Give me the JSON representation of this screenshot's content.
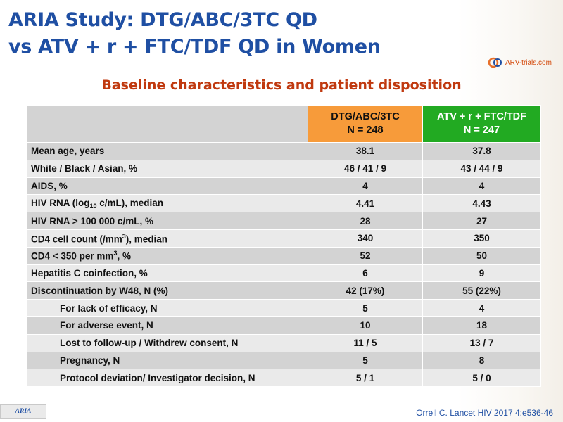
{
  "header": {
    "title_line1": "ARIA Study: DTG/ABC/3TC QD",
    "title_line2": "vs ATV + r + FTC/TDF QD in Women",
    "subtitle": "Baseline characteristics and patient disposition"
  },
  "logo": {
    "text": "ARV-trials.com"
  },
  "table": {
    "groups": [
      {
        "name": "DTG/ABC/3TC",
        "n": "N = 248",
        "color": "#f79b3a"
      },
      {
        "name": "ATV + r + FTC/TDF",
        "n": "N = 247",
        "color": "#22aa22"
      }
    ],
    "rows": [
      {
        "label": "Mean age, years",
        "v1": "38.1",
        "v2": "37.8"
      },
      {
        "label": "White / Black / Asian, %",
        "v1": "46 / 41 / 9",
        "v2": "43 / 44 / 9"
      },
      {
        "label": "AIDS, %",
        "v1": "4",
        "v2": "4"
      },
      {
        "label_pre": "HIV RNA (log",
        "label_sub": "10",
        "label_post": " c/mL), median",
        "v1": "4.41",
        "v2": "4.43"
      },
      {
        "label": "HIV RNA > 100 000 c/mL, %",
        "v1": "28",
        "v2": "27"
      },
      {
        "label_pre": "CD4 cell count (/mm",
        "label_sup": "3",
        "label_post": "), median",
        "v1": "340",
        "v2": "350"
      },
      {
        "label_pre": "CD4 < 350 per mm",
        "label_sup": "3",
        "label_post": ", %",
        "v1": "52",
        "v2": "50"
      },
      {
        "label": "Hepatitis C coinfection, %",
        "v1": "6",
        "v2": "9"
      },
      {
        "label": "Discontinuation by W48, N (%)",
        "v1": "42 (17%)",
        "v2": "55 (22%)"
      },
      {
        "label": "For lack of efficacy, N",
        "v1": "5",
        "v2": "4"
      },
      {
        "label": "For adverse event, N",
        "v1": "10",
        "v2": "18"
      },
      {
        "label": "Lost to follow-up / Withdrew consent, N",
        "v1": "11 / 5",
        "v2": "13 / 7"
      },
      {
        "label": "Pregnancy, N",
        "v1": "5",
        "v2": "8"
      },
      {
        "label": "Protocol deviation/ Investigator decision, N",
        "v1": "5 / 1",
        "v2": "5 / 0"
      }
    ]
  },
  "footer": {
    "tab_label": "ARIA",
    "citation": "Orrell C. Lancet HIV 2017 4:e536-46"
  }
}
